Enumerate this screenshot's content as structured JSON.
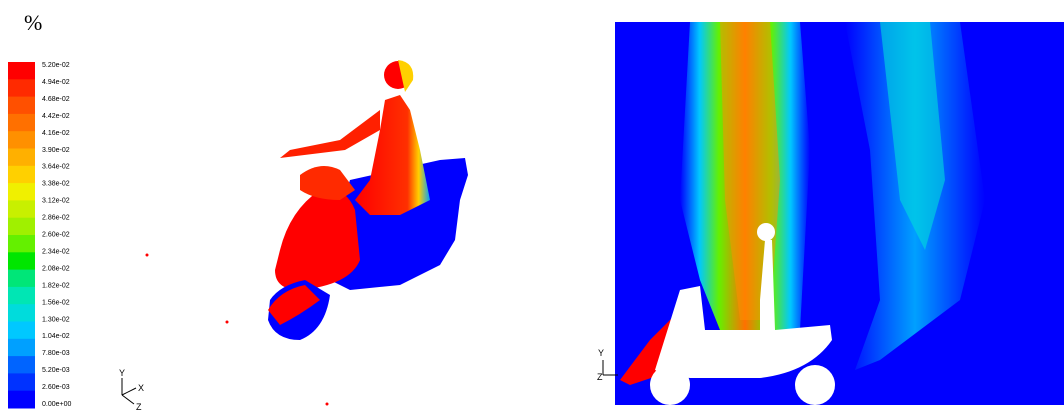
{
  "legend": {
    "unit": "%",
    "labels": [
      "5.20e-02",
      "4.94e-02",
      "4.68e-02",
      "4.42e-02",
      "4.16e-02",
      "3.90e-02",
      "3.64e-02",
      "3.38e-02",
      "3.12e-02",
      "2.86e-02",
      "2.60e-02",
      "2.34e-02",
      "2.08e-02",
      "1.82e-02",
      "1.56e-02",
      "1.30e-02",
      "1.04e-02",
      "7.80e-03",
      "5.20e-03",
      "2.60e-03",
      "0.00e+00"
    ],
    "colors": [
      "#ff0000",
      "#ff2a00",
      "#ff5000",
      "#ff7000",
      "#ff9000",
      "#ffb000",
      "#ffd000",
      "#f0f000",
      "#c8f000",
      "#a0f000",
      "#64f000",
      "#00e600",
      "#00e678",
      "#00e6b4",
      "#00dcdc",
      "#00c8ff",
      "#00a0ff",
      "#0064ff",
      "#0032ff",
      "#0000ff"
    ]
  },
  "left_view": {
    "axes": {
      "y": "Y",
      "x": "X",
      "z": "Z"
    }
  },
  "right_view": {
    "axes": {
      "y": "Y",
      "z": "Z"
    }
  }
}
